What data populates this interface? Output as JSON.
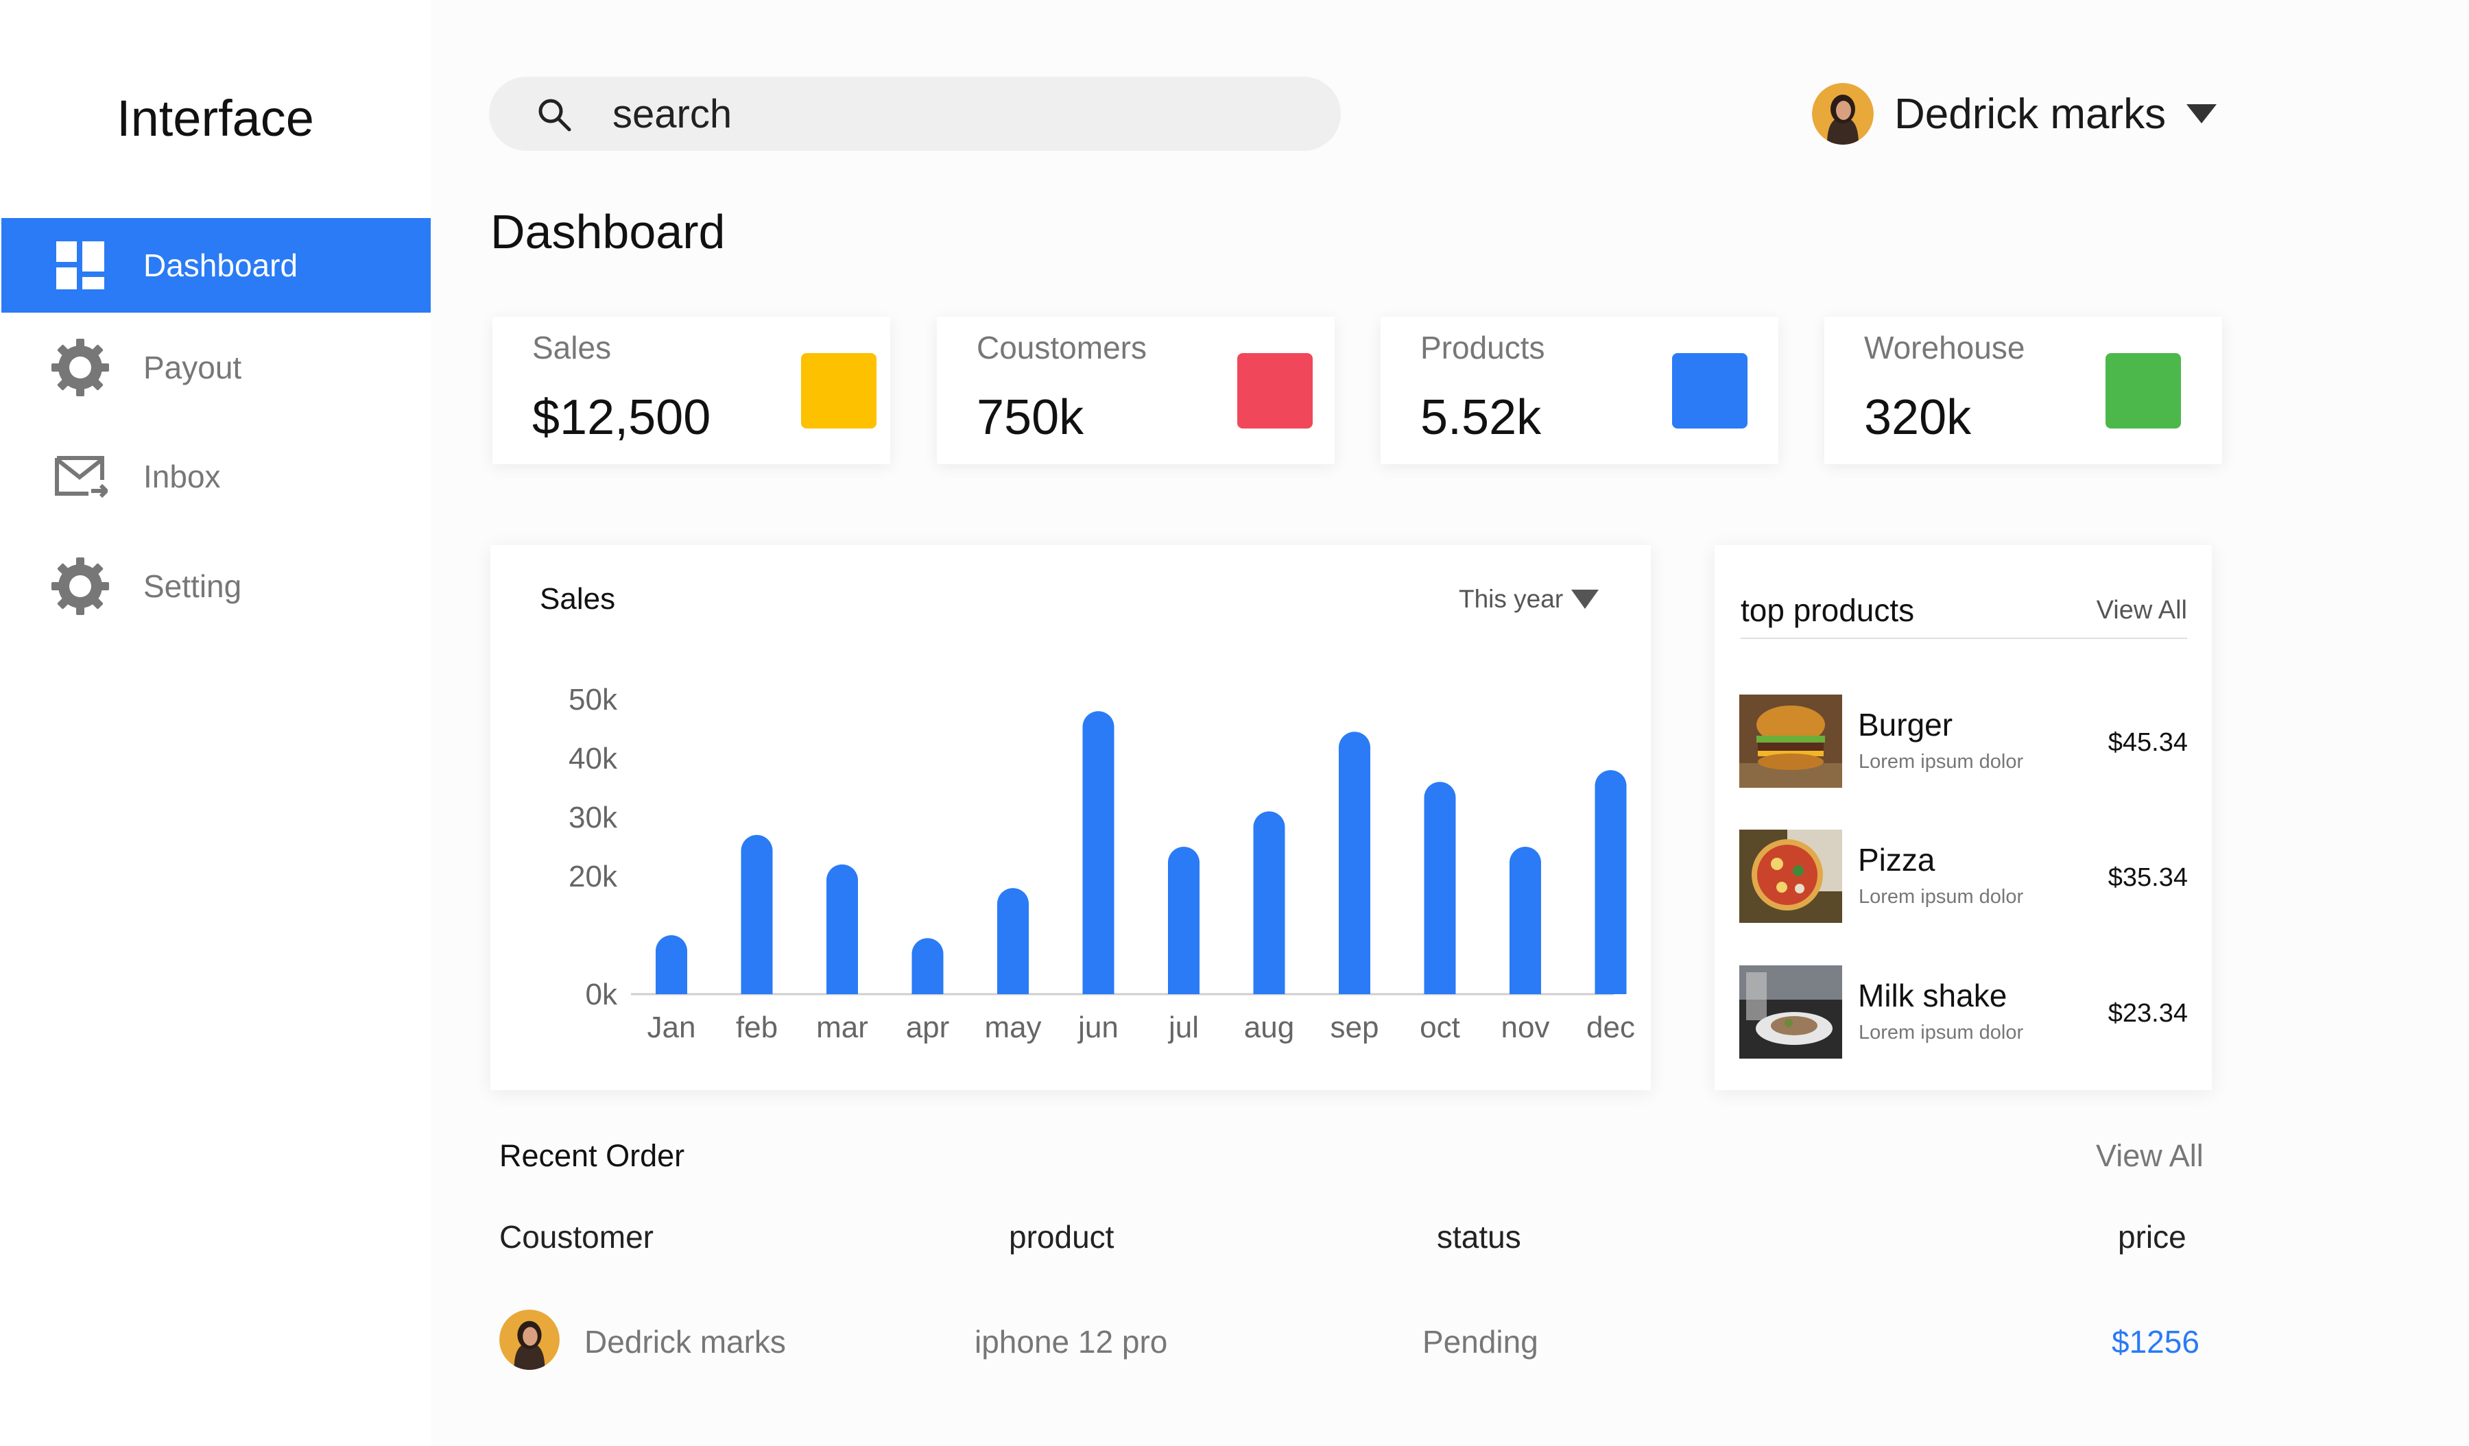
{
  "app": {
    "brand": "Interface"
  },
  "sidebar": {
    "items": [
      {
        "label": "Dashboard",
        "icon": "dashboard-icon",
        "active": true
      },
      {
        "label": "Payout",
        "icon": "gear-icon",
        "active": false
      },
      {
        "label": "Inbox",
        "icon": "mail-icon",
        "active": false
      },
      {
        "label": "Setting",
        "icon": "gear-icon",
        "active": false
      }
    ]
  },
  "search": {
    "placeholder": "search",
    "icon": "search-icon"
  },
  "user": {
    "name": "Dedrick marks",
    "icon": "chevron-down-icon"
  },
  "page_title": "Dashboard",
  "stats": [
    {
      "label": "Sales",
      "value": "$12,500",
      "color": "#FDC100"
    },
    {
      "label": "Coustomers",
      "value": "750k",
      "color": "#F0485A"
    },
    {
      "label": "Products",
      "value": "5.52k",
      "color": "#2A7BF5"
    },
    {
      "label": "Worehouse",
      "value": "320k",
      "color": "#4CB84C"
    }
  ],
  "sales_chart": {
    "title": "Sales",
    "period": "This year"
  },
  "chart_data": {
    "type": "bar",
    "title": "Sales",
    "categories": [
      "Jan",
      "feb",
      "mar",
      "apr",
      "may",
      "jun",
      "jul",
      "aug",
      "sep",
      "oct",
      "nov",
      "dec"
    ],
    "values": [
      10000,
      27000,
      22000,
      9500,
      18000,
      48000,
      25000,
      31000,
      44500,
      36000,
      25000,
      38000
    ],
    "yticks": [
      "0k",
      "20k",
      "30k",
      "40k",
      "50k"
    ],
    "ylim": [
      0,
      50000
    ],
    "grid": false,
    "bar_color": "#2A7BF5"
  },
  "top_products": {
    "title": "top products",
    "view_all": "View All",
    "items": [
      {
        "name": "Burger",
        "desc": "Lorem ipsum dolor",
        "price": "$45.34"
      },
      {
        "name": "Pizza",
        "desc": "Lorem ipsum dolor",
        "price": "$35.34"
      },
      {
        "name": "Milk shake",
        "desc": "Lorem ipsum dolor",
        "price": "$23.34"
      }
    ]
  },
  "recent_orders": {
    "title": "Recent Order",
    "view_all": "View All",
    "columns": [
      "Coustomer",
      "product",
      "status",
      "price"
    ],
    "rows": [
      {
        "customer": "Dedrick marks",
        "product": "iphone 12 pro",
        "status": "Pending",
        "price": "$1256"
      }
    ]
  },
  "colors": {
    "accent": "#2A7BF5"
  }
}
